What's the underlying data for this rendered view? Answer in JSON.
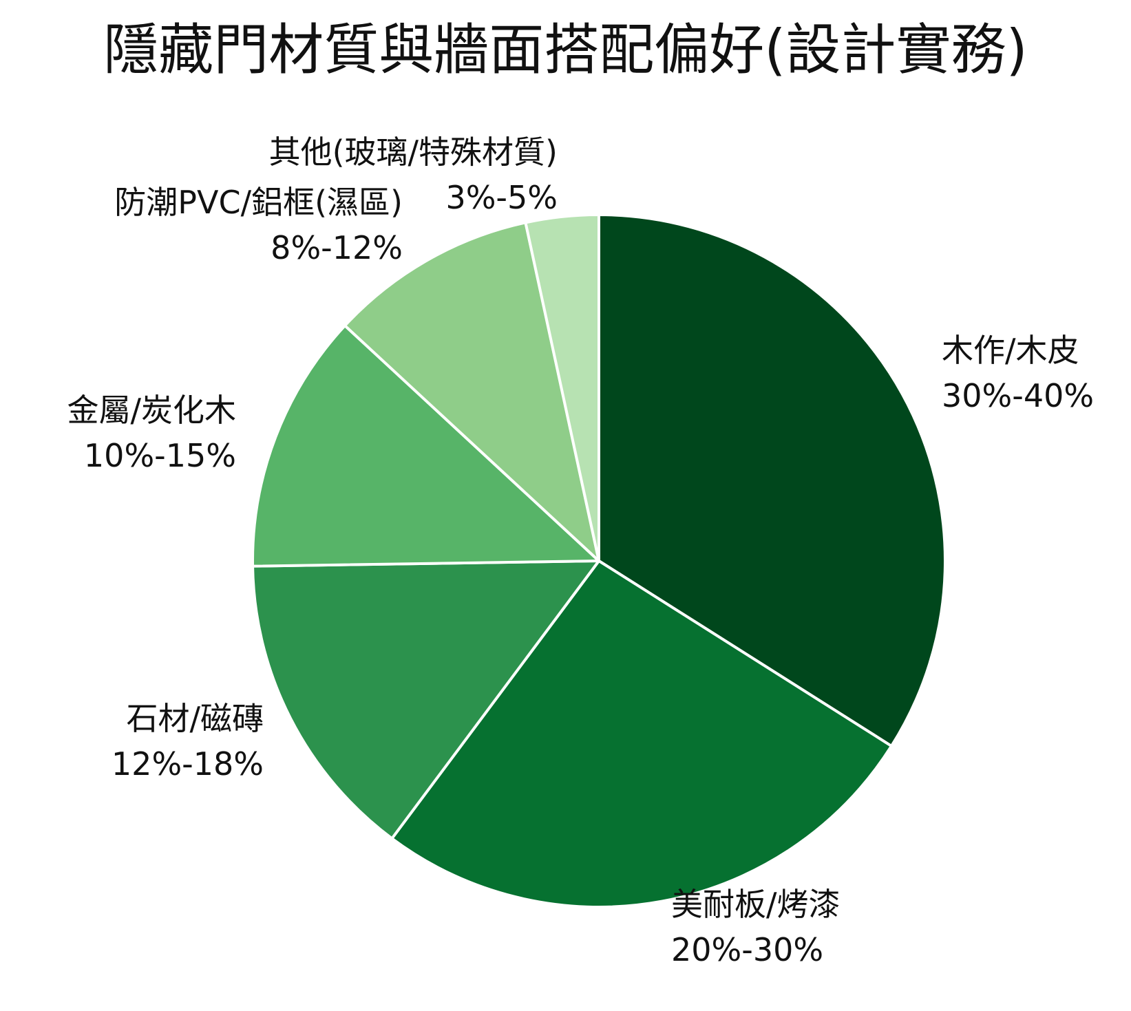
{
  "chart_data": {
    "type": "pie",
    "title": "隱藏門材質與牆面搭配偏好(設計實務)",
    "start_angle_deg": 0,
    "direction": "clockwise",
    "slices": [
      {
        "label": "木作/木皮",
        "range_text": "30%-40%",
        "value": 35,
        "color": "#00471c"
      },
      {
        "label": "美耐板/烤漆",
        "range_text": "20%-30%",
        "value": 27,
        "color": "#067130"
      },
      {
        "label": "石材/磁磚",
        "range_text": "12%-18%",
        "value": 15,
        "color": "#2c924d"
      },
      {
        "label": "金屬/炭化木",
        "range_text": "10%-15%",
        "value": 12.5,
        "color": "#57b468"
      },
      {
        "label": "防潮PVC/鋁框(濕區)",
        "range_text": "8%-12%",
        "value": 10,
        "color": "#8fcd89"
      },
      {
        "label": "其他(玻璃/特殊材質)",
        "range_text": "3%-5%",
        "value": 3.5,
        "color": "#b7e2b2"
      }
    ]
  }
}
